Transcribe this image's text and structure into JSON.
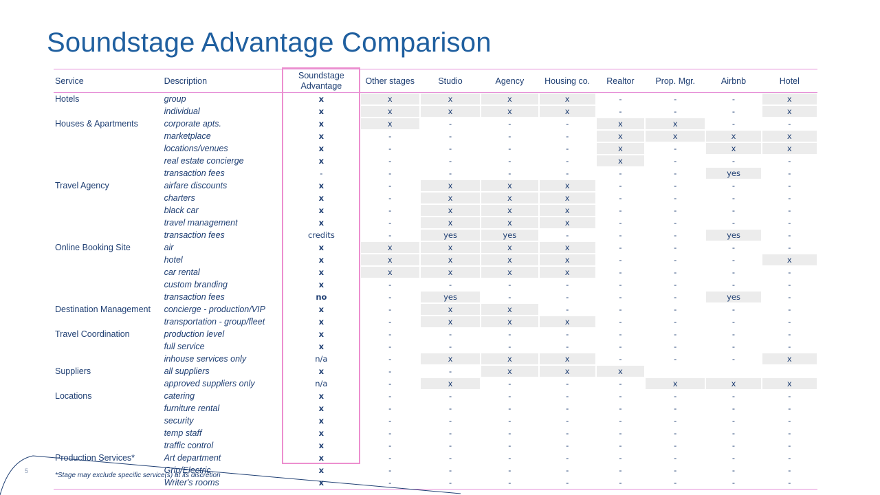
{
  "title": "Soundstage Advantage Comparison",
  "footnote": "*Stage may exclude specific service(s) at its discretion",
  "page_number": "5",
  "columns": [
    "Service",
    "Description",
    "Soundstage Advantage",
    "Other stages",
    "Studio",
    "Agency",
    "Housing co.",
    "Realtor",
    "Prop. Mgr.",
    "Airbnb",
    "Hotel"
  ],
  "rows": [
    {
      "service": "Hotels",
      "desc": "group",
      "cells": [
        "x",
        "x",
        "x",
        "x",
        "x",
        "-",
        "-",
        "-",
        "x"
      ],
      "hl": [
        1,
        1,
        1,
        1,
        1,
        0,
        0,
        0,
        1
      ]
    },
    {
      "service": "",
      "desc": "individual",
      "cells": [
        "x",
        "x",
        "x",
        "x",
        "x",
        "-",
        "-",
        "-",
        "x"
      ],
      "hl": [
        1,
        1,
        1,
        1,
        1,
        0,
        0,
        0,
        1
      ]
    },
    {
      "service": "Houses & Apartments",
      "desc": "corporate apts.",
      "cells": [
        "x",
        "x",
        "-",
        "-",
        "-",
        "x",
        "x",
        "-",
        "-"
      ],
      "hl": [
        1,
        1,
        0,
        0,
        0,
        1,
        1,
        0,
        0
      ]
    },
    {
      "service": "",
      "desc": "marketplace",
      "cells": [
        "x",
        "-",
        "-",
        "-",
        "-",
        "x",
        "x",
        "x",
        "x"
      ],
      "hl": [
        1,
        0,
        0,
        0,
        0,
        1,
        1,
        1,
        1
      ]
    },
    {
      "service": "",
      "desc": "locations/venues",
      "cells": [
        "x",
        "-",
        "-",
        "-",
        "-",
        "x",
        "-",
        "x",
        "x"
      ],
      "hl": [
        1,
        0,
        0,
        0,
        0,
        1,
        0,
        1,
        1
      ]
    },
    {
      "service": "",
      "desc": "real estate concierge",
      "cells": [
        "x",
        "-",
        "-",
        "-",
        "-",
        "x",
        "-",
        "-",
        "-"
      ],
      "hl": [
        1,
        0,
        0,
        0,
        0,
        1,
        0,
        0,
        0
      ]
    },
    {
      "service": "",
      "desc": "transaction fees",
      "cells": [
        "-",
        "-",
        "-",
        "-",
        "-",
        "-",
        "-",
        "yes",
        "-"
      ],
      "hl": [
        1,
        0,
        0,
        0,
        0,
        0,
        0,
        1,
        0
      ]
    },
    {
      "service": "Travel Agency",
      "desc": "airfare discounts",
      "cells": [
        "x",
        "-",
        "x",
        "x",
        "x",
        "-",
        "-",
        "-",
        "-"
      ],
      "hl": [
        1,
        0,
        1,
        1,
        1,
        0,
        0,
        0,
        0
      ]
    },
    {
      "service": "",
      "desc": "charters",
      "cells": [
        "x",
        "-",
        "x",
        "x",
        "x",
        "-",
        "-",
        "-",
        "-"
      ],
      "hl": [
        1,
        0,
        1,
        1,
        1,
        0,
        0,
        0,
        0
      ]
    },
    {
      "service": "",
      "desc": "black car",
      "cells": [
        "x",
        "-",
        "x",
        "x",
        "x",
        "-",
        "-",
        "-",
        "-"
      ],
      "hl": [
        1,
        0,
        1,
        1,
        1,
        0,
        0,
        0,
        0
      ]
    },
    {
      "service": "",
      "desc": "travel management",
      "cells": [
        "x",
        "-",
        "x",
        "x",
        "x",
        "-",
        "-",
        "-",
        "-"
      ],
      "hl": [
        1,
        0,
        1,
        1,
        1,
        0,
        0,
        0,
        0
      ]
    },
    {
      "service": "",
      "desc": "transaction fees",
      "cells": [
        "credits",
        "-",
        "yes",
        "yes",
        "-",
        "-",
        "-",
        "yes",
        "-"
      ],
      "hl": [
        1,
        0,
        1,
        1,
        0,
        0,
        0,
        1,
        0
      ]
    },
    {
      "service": "Online Booking Site",
      "desc": "air",
      "cells": [
        "x",
        "x",
        "x",
        "x",
        "x",
        "-",
        "-",
        "-",
        "-"
      ],
      "hl": [
        1,
        1,
        1,
        1,
        1,
        0,
        0,
        0,
        0
      ]
    },
    {
      "service": "",
      "desc": "hotel",
      "cells": [
        "x",
        "x",
        "x",
        "x",
        "x",
        "-",
        "-",
        "-",
        "x"
      ],
      "hl": [
        1,
        1,
        1,
        1,
        1,
        0,
        0,
        0,
        1
      ]
    },
    {
      "service": "",
      "desc": "car rental",
      "cells": [
        "x",
        "x",
        "x",
        "x",
        "x",
        "-",
        "-",
        "-",
        "-"
      ],
      "hl": [
        1,
        1,
        1,
        1,
        1,
        0,
        0,
        0,
        0
      ]
    },
    {
      "service": "",
      "desc": "custom branding",
      "cells": [
        "x",
        "-",
        "-",
        "-",
        "-",
        "-",
        "-",
        "-",
        "-"
      ],
      "hl": [
        1,
        0,
        0,
        0,
        0,
        0,
        0,
        0,
        0
      ]
    },
    {
      "service": "",
      "desc": "transaction fees",
      "cells": [
        "no",
        "-",
        "yes",
        "-",
        "-",
        "-",
        "-",
        "yes",
        "-"
      ],
      "hl": [
        1,
        0,
        1,
        0,
        0,
        0,
        0,
        1,
        0
      ]
    },
    {
      "service": "Destination Management",
      "desc": "concierge - production/VIP",
      "cells": [
        "x",
        "-",
        "x",
        "x",
        "-",
        "-",
        "-",
        "-",
        "-"
      ],
      "hl": [
        1,
        0,
        1,
        1,
        0,
        0,
        0,
        0,
        0
      ]
    },
    {
      "service": "",
      "desc": "transportation - group/fleet",
      "cells": [
        "x",
        "-",
        "x",
        "x",
        "x",
        "-",
        "-",
        "-",
        "-"
      ],
      "hl": [
        1,
        0,
        1,
        1,
        1,
        0,
        0,
        0,
        0
      ]
    },
    {
      "service": "Travel Coordination",
      "desc": "production level",
      "cells": [
        "x",
        "-",
        "-",
        "-",
        "-",
        "-",
        "-",
        "-",
        "-"
      ],
      "hl": [
        1,
        0,
        0,
        0,
        0,
        0,
        0,
        0,
        0
      ]
    },
    {
      "service": "",
      "desc": "full service",
      "cells": [
        "x",
        "-",
        "-",
        "-",
        "-",
        "-",
        "-",
        "-",
        "-"
      ],
      "hl": [
        1,
        0,
        0,
        0,
        0,
        0,
        0,
        0,
        0
      ]
    },
    {
      "service": "",
      "desc": "inhouse services only",
      "cells": [
        "n/a",
        "-",
        "x",
        "x",
        "x",
        "-",
        "-",
        "-",
        "x"
      ],
      "hl": [
        1,
        0,
        1,
        1,
        1,
        0,
        0,
        0,
        1
      ]
    },
    {
      "service": "Suppliers",
      "desc": "all suppliers",
      "cells": [
        "x",
        "-",
        "-",
        "x",
        "x",
        "x",
        "",
        "",
        ""
      ],
      "hl": [
        1,
        0,
        0,
        1,
        1,
        1,
        0,
        0,
        0
      ]
    },
    {
      "service": "",
      "desc": "approved suppliers only",
      "cells": [
        "n/a",
        "-",
        "x",
        "-",
        "-",
        "-",
        "x",
        "x",
        "x"
      ],
      "hl": [
        1,
        0,
        1,
        0,
        0,
        0,
        1,
        1,
        1
      ]
    },
    {
      "service": "Locations",
      "desc": "catering",
      "cells": [
        "x",
        "-",
        "-",
        "-",
        "-",
        "-",
        "-",
        "-",
        "-"
      ],
      "hl": [
        1,
        0,
        0,
        0,
        0,
        0,
        0,
        0,
        0
      ]
    },
    {
      "service": "",
      "desc": "furniture rental",
      "cells": [
        "x",
        "-",
        "-",
        "-",
        "-",
        "-",
        "-",
        "-",
        "-"
      ],
      "hl": [
        1,
        0,
        0,
        0,
        0,
        0,
        0,
        0,
        0
      ]
    },
    {
      "service": "",
      "desc": "security",
      "cells": [
        "x",
        "-",
        "-",
        "-",
        "-",
        "-",
        "-",
        "-",
        "-"
      ],
      "hl": [
        1,
        0,
        0,
        0,
        0,
        0,
        0,
        0,
        0
      ]
    },
    {
      "service": "",
      "desc": "temp staff",
      "cells": [
        "x",
        "-",
        "-",
        "-",
        "-",
        "-",
        "-",
        "-",
        "-"
      ],
      "hl": [
        1,
        0,
        0,
        0,
        0,
        0,
        0,
        0,
        0
      ]
    },
    {
      "service": "",
      "desc": "traffic control",
      "cells": [
        "x",
        "-",
        "-",
        "-",
        "-",
        "-",
        "-",
        "-",
        "-"
      ],
      "hl": [
        1,
        0,
        0,
        0,
        0,
        0,
        0,
        0,
        0
      ]
    },
    {
      "service": "Production Services*",
      "desc": "Art department",
      "cells": [
        "x",
        "-",
        "-",
        "-",
        "-",
        "-",
        "-",
        "-",
        "-"
      ],
      "hl": [
        1,
        0,
        0,
        0,
        0,
        0,
        0,
        0,
        0
      ]
    },
    {
      "service": "",
      "desc": "Grip/Electric",
      "cells": [
        "x",
        "-",
        "-",
        "-",
        "-",
        "-",
        "-",
        "-",
        "-"
      ],
      "hl": [
        1,
        0,
        0,
        0,
        0,
        0,
        0,
        0,
        0
      ]
    },
    {
      "service": "",
      "desc": "Writer's rooms",
      "cells": [
        "x",
        "-",
        "-",
        "-",
        "-",
        "-",
        "-",
        "-",
        "-"
      ],
      "hl": [
        1,
        0,
        0,
        0,
        0,
        0,
        0,
        0,
        0
      ]
    }
  ]
}
